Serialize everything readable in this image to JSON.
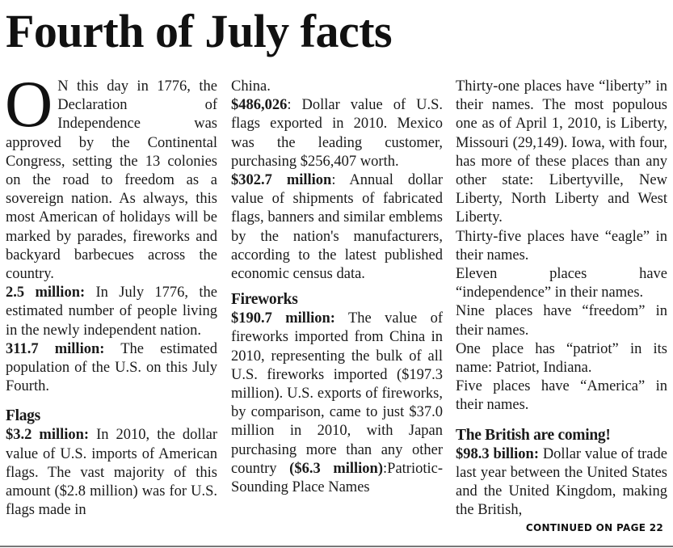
{
  "headline": "Fourth of July facts",
  "continued": "CONTINUED ON PAGE 22",
  "columns": [
    {
      "blocks": [
        {
          "type": "p",
          "dropcap": "O",
          "segments": [
            {
              "text": "N this day in 1776, the Declaration of Independence was approved by the Continental Congress, setting the 13 colonies on the road to freedom as a sovereign nation. As always, this most American of holidays will be marked by parades, fireworks and backyard barbecues across the country."
            }
          ]
        },
        {
          "type": "p",
          "segments": [
            {
              "bold": true,
              "text": "2.5 million:"
            },
            {
              "text": " In July 1776, the estimated number of people living in the newly independent nation."
            }
          ]
        },
        {
          "type": "p",
          "segments": [
            {
              "bold": true,
              "text": "311.7 million:"
            },
            {
              "text": " The estimated population of the U.S. on this July Fourth."
            }
          ]
        },
        {
          "type": "h",
          "big": true,
          "text": "Flags"
        },
        {
          "type": "p",
          "segments": [
            {
              "bold": true,
              "text": "$3.2 million:"
            },
            {
              "text": " In 2010, the dollar value of U.S. imports of American flags. The vast majority of this amount ($2.8 million) was for U.S. flags made in"
            }
          ]
        }
      ]
    },
    {
      "blocks": [
        {
          "type": "p",
          "segments": [
            {
              "text": "China."
            }
          ]
        },
        {
          "type": "p",
          "segments": [
            {
              "bold": true,
              "text": "$486,026"
            },
            {
              "text": ": Dollar value of U.S. flags exported in 2010. Mexico was the leading customer, purchasing $256,407 worth."
            }
          ]
        },
        {
          "type": "p",
          "segments": [
            {
              "bold": true,
              "text": "$302.7 million"
            },
            {
              "text": ": Annual dollar value of shipments of fabricated flags, banners and similar emblems by the nation's manufacturers, according to the latest published economic census data."
            }
          ]
        },
        {
          "type": "h",
          "text": "Fireworks"
        },
        {
          "type": "p",
          "segments": [
            {
              "bold": true,
              "text": "$190.7 million:"
            },
            {
              "text": " The value of fireworks imported from China in 2010, representing the bulk of all U.S. fireworks imported ($197.3 million). U.S. exports of fireworks, by comparison, came to just $37.0 million in 2010, with Japan purchasing more than any other country "
            },
            {
              "bold": true,
              "text": "($6.3 million)"
            },
            {
              "text": ":Patriotic-Sounding Place Names"
            }
          ]
        }
      ]
    },
    {
      "blocks": [
        {
          "type": "p",
          "segments": [
            {
              "text": "Thirty-one places have “liberty” in their names. The most populous one as of April 1, 2010, is Liberty, Missouri (29,149). Iowa, with four, has more of these places than any other state: Libertyville, New Liberty, North Liberty and West Liberty."
            }
          ]
        },
        {
          "type": "p",
          "segments": [
            {
              "text": "Thirty-five places have “eagle” in their names."
            }
          ]
        },
        {
          "type": "p",
          "segments": [
            {
              "text": "Eleven places have “independence” in their names."
            }
          ]
        },
        {
          "type": "p",
          "segments": [
            {
              "text": "Nine places have “freedom” in their names."
            }
          ]
        },
        {
          "type": "p",
          "segments": [
            {
              "text": "One place has “patriot” in its name: Patriot, Indiana."
            }
          ]
        },
        {
          "type": "p",
          "segments": [
            {
              "text": "Five places have “America” in their names."
            }
          ]
        },
        {
          "type": "h",
          "big": true,
          "text": "The British are coming!"
        },
        {
          "type": "p",
          "segments": [
            {
              "bold": true,
              "text": "$98.3 billion:"
            },
            {
              "text": " Dollar value of trade last year between the United States and the United Kingdom, making the British,"
            }
          ]
        }
      ]
    }
  ]
}
